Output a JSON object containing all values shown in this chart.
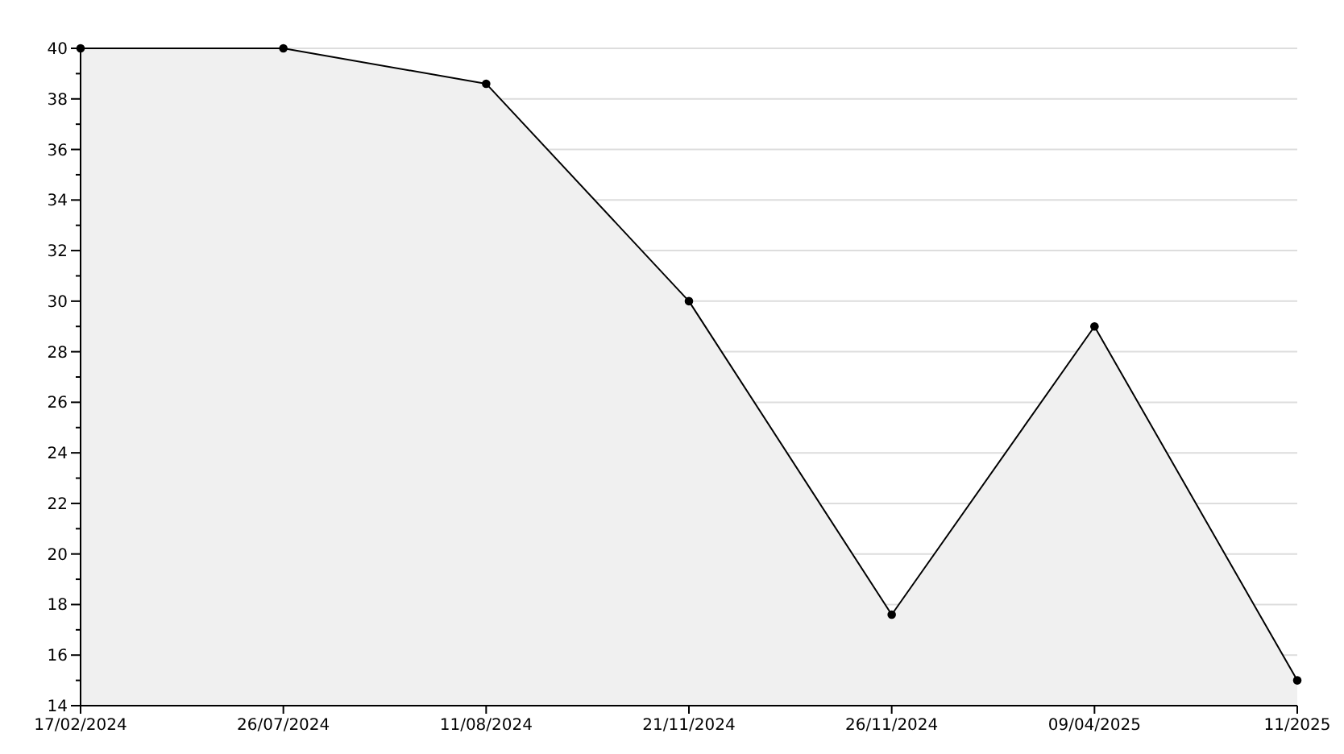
{
  "chart_data": {
    "type": "area",
    "categories": [
      "17/02/2024",
      "26/07/2024",
      "11/08/2024",
      "21/11/2024",
      "26/11/2024",
      "09/04/2025",
      "11/2025"
    ],
    "series": [
      {
        "color": "#f0f0f0",
        "values": [
          40,
          40,
          38.6,
          30,
          17.6,
          29,
          15
        ]
      }
    ],
    "ylim": [
      14,
      40
    ],
    "yticks": [
      14,
      {
        "value": 15,
        "label": null
      },
      16,
      {
        "value": 17,
        "label": null
      },
      18,
      {
        "value": 19,
        "label": null
      },
      20,
      {
        "value": 21,
        "label": null
      },
      22,
      {
        "value": 23,
        "label": null
      },
      24,
      {
        "value": 25,
        "label": null
      },
      26,
      {
        "value": 27,
        "label": null
      },
      28,
      {
        "value": 29,
        "label": null
      },
      30,
      {
        "value": 31,
        "label": null
      },
      32,
      {
        "value": 33,
        "label": null
      },
      34,
      {
        "value": 35,
        "label": null
      },
      36,
      {
        "value": 37,
        "label": null
      },
      38,
      {
        "value": 39,
        "label": null
      },
      40
    ],
    "grid": "y",
    "marker": "circle",
    "line_style": "solid"
  }
}
